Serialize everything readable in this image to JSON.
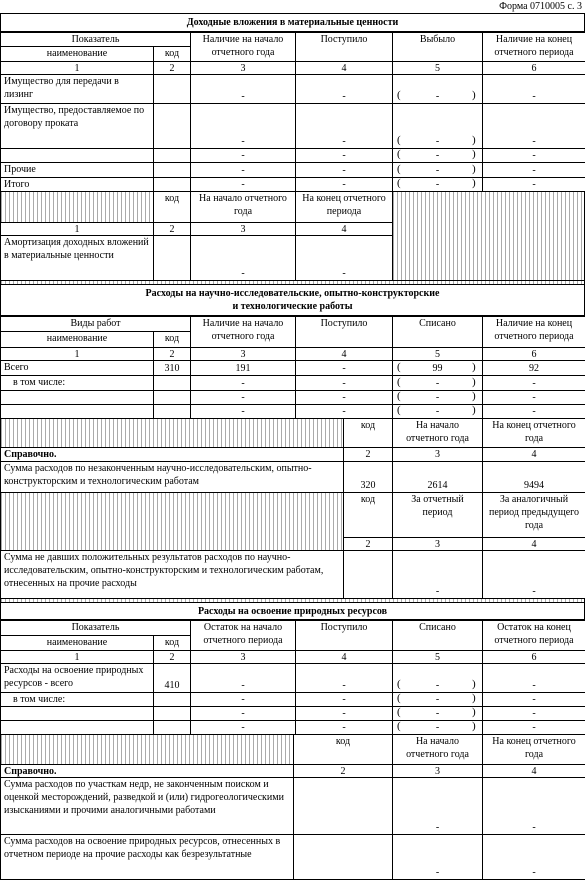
{
  "header": {
    "form": "Форма 0710005 с. 3"
  },
  "paren_open": "(",
  "paren_close": ")",
  "section1": {
    "title": "Доходные вложения в материальные ценности",
    "columns": [
      "Показатель",
      "наименование",
      "код",
      "Наличие на начало отчетного года",
      "Поступило",
      "Выбыло",
      "Наличие на конец отчетного периода"
    ],
    "column_numbers": [
      "1",
      "2",
      "3",
      "4",
      "5",
      "6"
    ],
    "rows": [
      {
        "name": "Имущество для передачи в лизинг",
        "values": [
          "-",
          "-",
          "-",
          "-"
        ]
      },
      {
        "name": "Имущество, предоставляемое по договору проката",
        "values": [
          "-",
          "-",
          "-",
          "-"
        ]
      },
      {
        "values": [
          "-",
          "-",
          "-",
          "-"
        ]
      },
      {
        "name": "Прочие",
        "values": [
          "-",
          "-",
          "-",
          "-"
        ]
      },
      {
        "name": "Итого",
        "values": [
          "-",
          "-",
          "-",
          "-"
        ]
      }
    ],
    "amortization": {
      "columns": [
        "код",
        "На начало отчетного года",
        "На конец отчетного периода"
      ],
      "column_numbers": [
        "1",
        "2",
        "3",
        "4"
      ],
      "row": {
        "name": "Амортизация доходных вложений в материальные ценности",
        "values": [
          "-",
          "-"
        ]
      }
    }
  },
  "section2": {
    "title_lines": [
      "Расходы на научно-исследовательские, опытно-конструкторские",
      "и технологические работы"
    ],
    "columns": [
      "Виды работ",
      "наименование",
      "код",
      "Наличие на начало отчетного года",
      "Поступило",
      "Списано",
      "Наличие на конец отчетного периода"
    ],
    "column_numbers": [
      "1",
      "2",
      "3",
      "4",
      "5",
      "6"
    ],
    "rows": [
      {
        "name": "Всего",
        "code": "310",
        "values": [
          "191",
          "-",
          "99",
          "92"
        ]
      },
      {
        "name": "в том числе:",
        "values": [
          "-",
          "-",
          "-",
          "-"
        ]
      },
      {
        "values": [
          "-",
          "-",
          "-",
          "-"
        ]
      },
      {
        "values": [
          "-",
          "-",
          "-",
          "-"
        ]
      }
    ],
    "reference": {
      "columns": [
        "код",
        "На начало отчетного года",
        "На конец отчетного года"
      ],
      "label": "Справочно.",
      "column_numbers": [
        "2",
        "3",
        "4"
      ],
      "row": {
        "name": "Сумма расходов по незаконченным научно-исследовательским, опытно-конструкторским и технологическим работам",
        "code": "320",
        "values": [
          "2614",
          "9494"
        ]
      },
      "columns2": [
        "код",
        "За отчетный период",
        "За аналогичный период предыдущего года"
      ],
      "column_numbers2": [
        "2",
        "3",
        "4"
      ],
      "row2": {
        "name": "Сумма не давших положительных результатов расходов по научно-исследовательским, опытно-конструкторским и технологическим работам, отнесенных на прочие расходы",
        "values": [
          "-",
          "-"
        ]
      }
    }
  },
  "section3": {
    "title": "Расходы на освоение природных ресурсов",
    "columns": [
      "Показатель",
      "наименование",
      "код",
      "Остаток на начало отчетного периода",
      "Поступило",
      "Списано",
      "Остаток на конец отчетного периода"
    ],
    "column_numbers": [
      "1",
      "2",
      "3",
      "4",
      "5",
      "6"
    ],
    "rows": [
      {
        "name": "Расходы на освоение природных ресурсов - всего",
        "code": "410",
        "values": [
          "-",
          "-",
          "-",
          "-"
        ]
      },
      {
        "name": "в том числе:",
        "values": [
          "-",
          "-",
          "-",
          "-"
        ]
      },
      {
        "values": [
          "-",
          "-",
          "-",
          "-"
        ]
      },
      {
        "values": [
          "-",
          "-",
          "-",
          "-"
        ]
      }
    ],
    "reference": {
      "columns": [
        "код",
        "На начало отчетного года",
        "На конец отчетного года"
      ],
      "label": "Справочно.",
      "column_numbers": [
        "2",
        "3",
        "4"
      ],
      "rows": [
        {
          "name": "Сумма расходов по участкам недр, не законченным поиском и оценкой месторождений, разведкой и (или) гидрогеологическими изысканиями и прочими аналогичными работами",
          "values": [
            "-",
            "-"
          ]
        },
        {
          "name": "Сумма расходов на освоение природных ресурсов, отнесенных в отчетном периоде на прочие расходы как безрезультатные",
          "values": [
            "-",
            "-"
          ]
        }
      ]
    }
  }
}
